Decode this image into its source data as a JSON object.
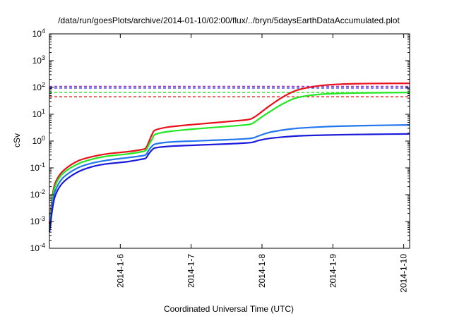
{
  "chart_data": {
    "type": "line",
    "title": "/data/run/goesPlots/archive/2014-01-10/02:00/flux/../bryn/5daysEarthDataAccumulated.plot",
    "xlabel": "Coordinated Universal Time (UTC)",
    "ylabel": "cSv",
    "yscale": "log",
    "xlim": [
      "2014-01-05T00:00",
      "2014-01-10T02:00"
    ],
    "ylim": [
      0.0001,
      10000
    ],
    "grid": false,
    "legend": "none",
    "x_ticks": [
      {
        "value": "2014-01-06",
        "label": "2014-1-6"
      },
      {
        "value": "2014-01-07",
        "label": "2014-1-7"
      },
      {
        "value": "2014-01-08",
        "label": "2014-1-8"
      },
      {
        "value": "2014-01-09",
        "label": "2014-1-9"
      },
      {
        "value": "2014-01-10",
        "label": "2014-1-10"
      }
    ],
    "y_ticks": [
      {
        "value": 0.0001,
        "base": "10",
        "exp": "-4"
      },
      {
        "value": 0.001,
        "base": "10",
        "exp": "-3"
      },
      {
        "value": 0.01,
        "base": "10",
        "exp": "-2"
      },
      {
        "value": 0.1,
        "base": "10",
        "exp": "-1"
      },
      {
        "value": 1,
        "base": "10",
        "exp": "0"
      },
      {
        "value": 10,
        "base": "10",
        "exp": "1"
      },
      {
        "value": 100,
        "base": "10",
        "exp": "2"
      },
      {
        "value": 1000,
        "base": "10",
        "exp": "3"
      },
      {
        "value": 10000,
        "base": "10",
        "exp": "4"
      }
    ],
    "series": [
      {
        "color": "#e8101a",
        "style": "solid",
        "points": [
          [
            "2014-01-05T00:00",
            0.0008
          ],
          [
            "2014-01-05T01:12",
            0.012
          ],
          [
            "2014-01-05T02:24",
            0.035
          ],
          [
            "2014-01-05T04:48",
            0.08
          ],
          [
            "2014-01-05T09:36",
            0.18
          ],
          [
            "2014-01-05T14:24",
            0.26
          ],
          [
            "2014-01-05T19:12",
            0.33
          ],
          [
            "2014-01-06T02:24",
            0.4
          ],
          [
            "2014-01-06T07:12",
            0.48
          ],
          [
            "2014-01-06T08:38",
            0.55
          ],
          [
            "2014-01-06T09:36",
            0.9
          ],
          [
            "2014-01-06T10:48",
            1.8
          ],
          [
            "2014-01-06T12:00",
            2.6
          ],
          [
            "2014-01-06T16:48",
            3.4
          ],
          [
            "2014-01-07T02:24",
            4.3
          ],
          [
            "2014-01-07T12:00",
            5.3
          ],
          [
            "2014-01-07T19:12",
            6.3
          ],
          [
            "2014-01-07T21:07",
            7.5
          ],
          [
            "2014-01-07T22:48",
            10
          ],
          [
            "2014-01-08T02:24",
            20
          ],
          [
            "2014-01-08T07:12",
            45
          ],
          [
            "2014-01-08T12:00",
            80
          ],
          [
            "2014-01-08T19:12",
            115
          ],
          [
            "2014-01-09T02:24",
            132
          ],
          [
            "2014-01-09T12:00",
            140
          ],
          [
            "2014-01-10T02:00",
            143
          ]
        ]
      },
      {
        "color": "#22e822",
        "style": "solid",
        "points": [
          [
            "2014-01-05T00:00",
            0.0006
          ],
          [
            "2014-01-05T01:12",
            0.009
          ],
          [
            "2014-01-05T02:24",
            0.028
          ],
          [
            "2014-01-05T04:48",
            0.065
          ],
          [
            "2014-01-05T09:36",
            0.14
          ],
          [
            "2014-01-05T14:24",
            0.21
          ],
          [
            "2014-01-05T19:12",
            0.27
          ],
          [
            "2014-01-06T02:24",
            0.33
          ],
          [
            "2014-01-06T07:12",
            0.4
          ],
          [
            "2014-01-06T08:38",
            0.45
          ],
          [
            "2014-01-06T09:36",
            0.7
          ],
          [
            "2014-01-06T10:48",
            1.2
          ],
          [
            "2014-01-06T12:00",
            1.8
          ],
          [
            "2014-01-06T16:48",
            2.3
          ],
          [
            "2014-01-07T02:24",
            2.9
          ],
          [
            "2014-01-07T12:00",
            3.5
          ],
          [
            "2014-01-07T19:12",
            4.1
          ],
          [
            "2014-01-07T21:07",
            4.8
          ],
          [
            "2014-01-07T22:48",
            6.5
          ],
          [
            "2014-01-08T02:24",
            12
          ],
          [
            "2014-01-08T07:12",
            25
          ],
          [
            "2014-01-08T12:00",
            42
          ],
          [
            "2014-01-08T19:12",
            55
          ],
          [
            "2014-01-09T02:24",
            60
          ],
          [
            "2014-01-09T12:00",
            63
          ],
          [
            "2014-01-10T02:00",
            65
          ]
        ]
      },
      {
        "color": "#2277ee",
        "style": "solid",
        "points": [
          [
            "2014-01-05T00:00",
            0.0005
          ],
          [
            "2014-01-05T01:12",
            0.006
          ],
          [
            "2014-01-05T02:24",
            0.018
          ],
          [
            "2014-01-05T04:48",
            0.045
          ],
          [
            "2014-01-05T09:36",
            0.1
          ],
          [
            "2014-01-05T14:24",
            0.15
          ],
          [
            "2014-01-05T19:12",
            0.19
          ],
          [
            "2014-01-06T02:24",
            0.24
          ],
          [
            "2014-01-06T07:12",
            0.28
          ],
          [
            "2014-01-06T08:38",
            0.31
          ],
          [
            "2014-01-06T09:36",
            0.45
          ],
          [
            "2014-01-06T10:48",
            0.65
          ],
          [
            "2014-01-06T12:00",
            0.78
          ],
          [
            "2014-01-06T16:48",
            0.92
          ],
          [
            "2014-01-07T02:24",
            1.02
          ],
          [
            "2014-01-07T12:00",
            1.12
          ],
          [
            "2014-01-07T19:12",
            1.23
          ],
          [
            "2014-01-07T21:07",
            1.32
          ],
          [
            "2014-01-07T22:48",
            1.55
          ],
          [
            "2014-01-08T02:24",
            2.1
          ],
          [
            "2014-01-08T07:12",
            2.6
          ],
          [
            "2014-01-08T12:00",
            3.0
          ],
          [
            "2014-01-08T19:12",
            3.35
          ],
          [
            "2014-01-09T02:24",
            3.6
          ],
          [
            "2014-01-09T12:00",
            3.8
          ],
          [
            "2014-01-10T02:00",
            4.0
          ]
        ]
      },
      {
        "color": "#1a1adc",
        "style": "solid",
        "points": [
          [
            "2014-01-05T00:00",
            0.0004
          ],
          [
            "2014-01-05T01:12",
            0.004
          ],
          [
            "2014-01-05T02:24",
            0.012
          ],
          [
            "2014-01-05T04:48",
            0.03
          ],
          [
            "2014-01-05T09:36",
            0.07
          ],
          [
            "2014-01-05T14:24",
            0.11
          ],
          [
            "2014-01-05T19:12",
            0.14
          ],
          [
            "2014-01-06T02:24",
            0.17
          ],
          [
            "2014-01-06T07:12",
            0.21
          ],
          [
            "2014-01-06T08:38",
            0.23
          ],
          [
            "2014-01-06T09:36",
            0.33
          ],
          [
            "2014-01-06T10:48",
            0.47
          ],
          [
            "2014-01-06T12:00",
            0.56
          ],
          [
            "2014-01-06T16:48",
            0.64
          ],
          [
            "2014-01-07T02:24",
            0.71
          ],
          [
            "2014-01-07T12:00",
            0.78
          ],
          [
            "2014-01-07T19:12",
            0.86
          ],
          [
            "2014-01-07T21:07",
            0.92
          ],
          [
            "2014-01-07T22:48",
            1.05
          ],
          [
            "2014-01-08T02:24",
            1.25
          ],
          [
            "2014-01-08T07:12",
            1.42
          ],
          [
            "2014-01-08T12:00",
            1.55
          ],
          [
            "2014-01-08T19:12",
            1.65
          ],
          [
            "2014-01-09T02:24",
            1.72
          ],
          [
            "2014-01-09T12:00",
            1.78
          ],
          [
            "2014-01-10T02:00",
            1.85
          ]
        ]
      }
    ],
    "reference_lines": [
      {
        "value": 110,
        "color": "#9b30c8",
        "style": "dashed"
      },
      {
        "value": 95,
        "color": "#1a1adc",
        "style": "dashed"
      },
      {
        "value": 65,
        "color": "#22e822",
        "style": "dashed"
      },
      {
        "value": 45,
        "color": "#e8101a",
        "style": "dashed"
      }
    ]
  }
}
